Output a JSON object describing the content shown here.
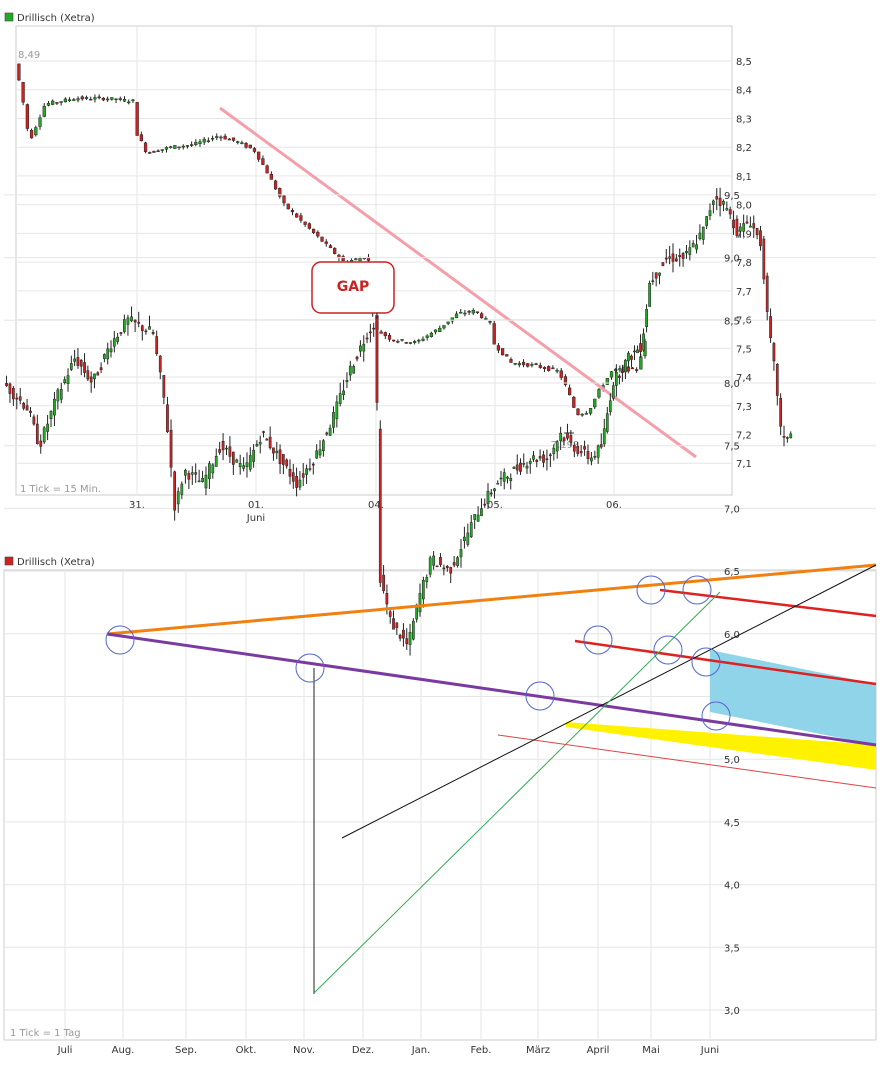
{
  "chart_data": [
    {
      "type": "candlestick",
      "title": "Drillisch (Xetra)",
      "legend_color": "#22aa22",
      "tick_note": "1 Tick = 15 Min.",
      "y_ticks": [
        "8,5",
        "8,4",
        "8,3",
        "8,2",
        "8,1",
        "8,0",
        "7,9",
        "7,8",
        "7,7",
        "7,6",
        "7,5",
        "7,4",
        "7,3",
        "7,2",
        "7,1"
      ],
      "x_labels": [
        {
          "label": "31.",
          "sub": ""
        },
        {
          "label": "01.",
          "sub": "Juni"
        },
        {
          "label": "04.",
          "sub": ""
        },
        {
          "label": "05.",
          "sub": ""
        },
        {
          "label": "06.",
          "sub": ""
        }
      ],
      "annotations": {
        "high": "8,49",
        "low": "7,193",
        "gap_label": "GAP"
      },
      "price_path": [
        [
          0.0,
          8.49
        ],
        [
          0.05,
          8.4
        ],
        [
          0.12,
          8.22
        ],
        [
          0.25,
          8.35
        ],
        [
          0.5,
          8.37
        ],
        [
          0.75,
          8.37
        ],
        [
          0.99,
          8.36
        ],
        [
          1.0,
          8.26
        ],
        [
          1.1,
          8.18
        ],
        [
          1.3,
          8.2
        ],
        [
          1.5,
          8.21
        ],
        [
          1.7,
          8.24
        ],
        [
          1.85,
          8.22
        ],
        [
          2.0,
          8.19
        ],
        [
          2.1,
          8.12
        ],
        [
          2.25,
          8.0
        ],
        [
          2.45,
          7.92
        ],
        [
          2.6,
          7.86
        ],
        [
          2.75,
          7.8
        ],
        [
          2.95,
          7.82
        ],
        [
          3.0,
          7.57
        ],
        [
          3.15,
          7.53
        ],
        [
          3.35,
          7.52
        ],
        [
          3.55,
          7.57
        ],
        [
          3.7,
          7.62
        ],
        [
          3.85,
          7.63
        ],
        [
          3.99,
          7.58
        ],
        [
          4.0,
          7.52
        ],
        [
          4.15,
          7.45
        ],
        [
          4.35,
          7.44
        ],
        [
          4.55,
          7.42
        ],
        [
          4.62,
          7.36
        ],
        [
          4.7,
          7.27
        ],
        [
          4.8,
          7.28
        ],
        [
          4.9,
          7.36
        ],
        [
          5.0,
          7.42
        ],
        [
          5.1,
          7.43
        ],
        [
          5.2,
          7.42
        ],
        [
          5.3,
          7.55
        ]
      ]
    },
    {
      "type": "candlestick",
      "title": "Drillisch (Xetra)",
      "legend_color": "#cc2222",
      "tick_note": "1 Tick = 1 Tag",
      "y_ticks": [
        "9,5",
        "9,0",
        "8,5",
        "8,0",
        "7,5",
        "7,0",
        "6,5",
        "6,0",
        "5,5",
        "5,0",
        "4,5",
        "4,0",
        "3,5",
        "3,0"
      ],
      "x_labels": [
        "Juli",
        "Aug.",
        "Sep.",
        "Okt.",
        "Nov.",
        "Dez.",
        "Jan.",
        "Feb.",
        "März",
        "April",
        "Mai",
        "Juni"
      ],
      "price_path": [
        [
          0.0,
          8.0
        ],
        [
          0.4,
          7.8
        ],
        [
          0.6,
          7.5
        ],
        [
          0.9,
          7.9
        ],
        [
          1.2,
          8.2
        ],
        [
          1.5,
          8.0
        ],
        [
          1.8,
          8.3
        ],
        [
          2.1,
          8.5
        ],
        [
          2.5,
          8.4
        ],
        [
          2.7,
          7.8
        ],
        [
          2.85,
          7.0
        ],
        [
          3.0,
          7.3
        ],
        [
          3.3,
          7.2
        ],
        [
          3.6,
          7.5
        ],
        [
          4.0,
          7.3
        ],
        [
          4.3,
          7.6
        ],
        [
          4.6,
          7.4
        ],
        [
          4.9,
          7.2
        ],
        [
          5.2,
          7.4
        ],
        [
          5.5,
          7.7
        ],
        [
          5.8,
          8.1
        ],
        [
          6.1,
          8.4
        ],
        [
          6.25,
          8.5
        ],
        [
          6.3,
          6.5
        ],
        [
          6.5,
          6.1
        ],
        [
          6.8,
          5.9
        ],
        [
          7.0,
          6.3
        ],
        [
          7.2,
          6.6
        ],
        [
          7.5,
          6.5
        ],
        [
          7.8,
          6.8
        ],
        [
          8.0,
          7.0
        ],
        [
          8.3,
          7.2
        ],
        [
          8.6,
          7.3
        ],
        [
          8.9,
          7.4
        ],
        [
          9.2,
          7.4
        ],
        [
          9.4,
          7.6
        ],
        [
          9.6,
          7.5
        ],
        [
          9.9,
          7.4
        ],
        [
          10.1,
          7.5
        ],
        [
          10.3,
          8.0
        ],
        [
          10.6,
          8.2
        ],
        [
          10.85,
          8.3
        ],
        [
          11.0,
          8.8
        ],
        [
          11.3,
          9.0
        ],
        [
          11.6,
          9.0
        ],
        [
          11.9,
          9.2
        ],
        [
          12.1,
          9.5
        ],
        [
          12.3,
          9.4
        ],
        [
          12.5,
          9.2
        ],
        [
          12.7,
          9.3
        ],
        [
          12.9,
          9.1
        ],
        [
          13.0,
          8.5
        ],
        [
          13.15,
          8.0
        ],
        [
          13.25,
          7.5
        ],
        [
          13.35,
          7.6
        ]
      ]
    }
  ]
}
